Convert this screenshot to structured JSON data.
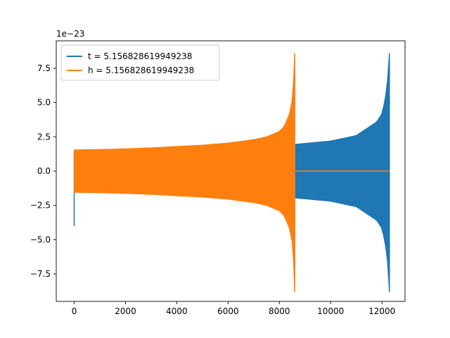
{
  "chart_data": {
    "type": "line",
    "title": "",
    "xlabel": "",
    "ylabel": "",
    "offset_text": "1e−23",
    "y_scale": 1e-23,
    "xlim": [
      -700,
      12900
    ],
    "ylim": [
      -9.5,
      9.5
    ],
    "x_ticks": [
      0,
      2000,
      4000,
      6000,
      8000,
      10000,
      12000
    ],
    "x_tick_labels": [
      "0",
      "2000",
      "4000",
      "6000",
      "8000",
      "10000",
      "12000"
    ],
    "y_ticks": [
      -7.5,
      -5.0,
      -2.5,
      0.0,
      2.5,
      5.0,
      7.5
    ],
    "y_tick_labels": [
      "−7.5",
      "−5.0",
      "−2.5",
      "0.0",
      "2.5",
      "5.0",
      "7.5"
    ],
    "grid": false,
    "legend_position": "upper-left",
    "series": [
      {
        "name": "t = 5.156828619949238",
        "color": "#1f77b4",
        "x_start": 0,
        "x_end": 12300,
        "x_merger": 12290,
        "initial_spike": -4.0,
        "envelope_x": [
          0,
          2000,
          4000,
          6000,
          8000,
          10000,
          11000,
          11800,
          12000,
          12100,
          12200,
          12260,
          12290
        ],
        "envelope_upper": [
          1.4,
          1.45,
          1.55,
          1.7,
          1.85,
          2.2,
          2.6,
          3.6,
          4.2,
          5.0,
          6.2,
          7.8,
          8.6
        ],
        "envelope_lower": [
          -1.4,
          -1.45,
          -1.55,
          -1.7,
          -1.85,
          -2.2,
          -2.6,
          -3.6,
          -4.2,
          -5.0,
          -6.2,
          -7.8,
          -8.8
        ]
      },
      {
        "name": "h = 5.156828619949238",
        "color": "#ff7f0e",
        "x_start": 0,
        "x_end": 12300,
        "x_merger": 8600,
        "envelope_x": [
          0,
          1000,
          2000,
          3000,
          4000,
          5000,
          6000,
          7000,
          7500,
          8000,
          8200,
          8400,
          8500,
          8560,
          8600
        ],
        "envelope_upper": [
          1.55,
          1.58,
          1.63,
          1.7,
          1.8,
          1.9,
          2.05,
          2.3,
          2.5,
          2.9,
          3.3,
          4.2,
          5.2,
          6.8,
          8.6
        ],
        "envelope_lower": [
          -1.55,
          -1.58,
          -1.63,
          -1.7,
          -1.8,
          -1.9,
          -2.05,
          -2.3,
          -2.5,
          -2.9,
          -3.3,
          -4.2,
          -5.2,
          -6.8,
          -8.8
        ],
        "post_merger_value": 0.0
      }
    ]
  }
}
